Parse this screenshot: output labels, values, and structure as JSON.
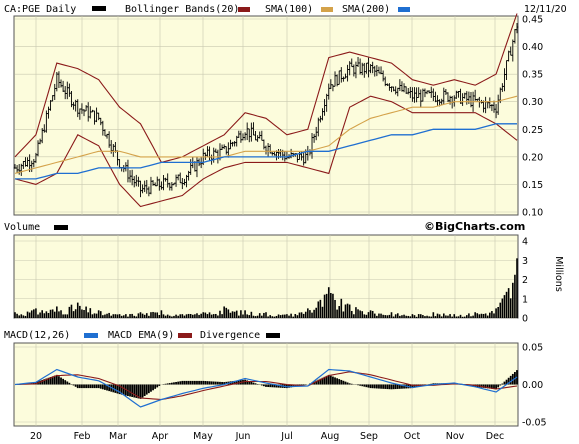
{
  "chart_data": [
    {
      "type": "candlestick",
      "panel": "price",
      "header": {
        "symbol": "CA:PGE Daily",
        "legend": [
          {
            "label": "Bollinger Bands(20)",
            "color": "#8b1a1a"
          },
          {
            "label": "SMA(100)",
            "color": "#d4a24a"
          },
          {
            "label": "SMA(200)",
            "color": "#1f6fd1"
          }
        ],
        "date": "12/11/20"
      },
      "y_ticks": [
        "0.45",
        "0.40",
        "0.35",
        "0.30",
        "0.25",
        "0.20",
        "0.15",
        "0.10"
      ],
      "ylim": [
        0.1,
        0.45
      ],
      "x_ticks": [
        "20",
        "Feb",
        "Mar",
        "Apr",
        "May",
        "Jun",
        "Jul",
        "Aug",
        "Sep",
        "Oct",
        "Nov",
        "Dec"
      ],
      "close_series": [
        [
          "20",
          0.18
        ],
        [
          "Jan mid",
          0.2
        ],
        [
          "Jan late",
          0.34
        ],
        [
          "Feb",
          0.29
        ],
        [
          "Feb mid",
          0.27
        ],
        [
          "Mar",
          0.19
        ],
        [
          "Mar mid",
          0.14
        ],
        [
          "Apr",
          0.15
        ],
        [
          "Apr mid",
          0.16
        ],
        [
          "May",
          0.2
        ],
        [
          "May mid",
          0.21
        ],
        [
          "Jun",
          0.25
        ],
        [
          "Jun mid",
          0.22
        ],
        [
          "Jul",
          0.2
        ],
        [
          "Jul mid",
          0.2
        ],
        [
          "Aug",
          0.33
        ],
        [
          "Aug mid",
          0.36
        ],
        [
          "Sep",
          0.36
        ],
        [
          "Sep mid",
          0.33
        ],
        [
          "Oct",
          0.31
        ],
        [
          "Oct mid",
          0.31
        ],
        [
          "Nov",
          0.31
        ],
        [
          "Nov mid",
          0.3
        ],
        [
          "Dec",
          0.29
        ],
        [
          "12/11/20",
          0.44
        ]
      ],
      "bollinger_upper": [
        0.2,
        0.24,
        0.37,
        0.36,
        0.34,
        0.29,
        0.26,
        0.19,
        0.2,
        0.22,
        0.24,
        0.28,
        0.27,
        0.24,
        0.25,
        0.38,
        0.39,
        0.38,
        0.37,
        0.34,
        0.33,
        0.34,
        0.33,
        0.35,
        0.46
      ],
      "bollinger_lower": [
        0.16,
        0.15,
        0.17,
        0.24,
        0.22,
        0.15,
        0.11,
        0.12,
        0.13,
        0.16,
        0.18,
        0.19,
        0.19,
        0.19,
        0.18,
        0.17,
        0.29,
        0.31,
        0.3,
        0.28,
        0.28,
        0.28,
        0.28,
        0.26,
        0.23
      ],
      "sma_100": [
        0.17,
        0.18,
        0.19,
        0.2,
        0.21,
        0.21,
        0.2,
        0.2,
        0.2,
        0.2,
        0.2,
        0.21,
        0.21,
        0.21,
        0.21,
        0.22,
        0.25,
        0.27,
        0.28,
        0.29,
        0.29,
        0.3,
        0.3,
        0.3,
        0.31
      ],
      "sma_200": [
        0.16,
        0.16,
        0.17,
        0.17,
        0.18,
        0.18,
        0.18,
        0.19,
        0.19,
        0.19,
        0.2,
        0.2,
        0.2,
        0.2,
        0.21,
        0.21,
        0.22,
        0.23,
        0.24,
        0.24,
        0.25,
        0.25,
        0.25,
        0.26,
        0.26
      ]
    },
    {
      "type": "bar",
      "panel": "volume",
      "header": {
        "label": "Volume",
        "credit": "©BigCharts.com"
      },
      "y_ticks": [
        "4",
        "3",
        "2",
        "1",
        "0"
      ],
      "ylim": [
        0,
        4
      ],
      "ylabel": "Millions",
      "values_millions": [
        0.3,
        0.5,
        0.6,
        0.8,
        0.4,
        0.2,
        0.3,
        0.4,
        0.2,
        0.3,
        0.6,
        0.4,
        0.3,
        0.2,
        0.5,
        1.6,
        0.7,
        0.4,
        0.3,
        0.2,
        0.3,
        0.2,
        0.3,
        0.5,
        3.1
      ]
    },
    {
      "type": "line",
      "panel": "macd",
      "header": {
        "legend": [
          {
            "label": "MACD(12,26)",
            "color": "#1f6fd1"
          },
          {
            "label": "MACD EMA(9)",
            "color": "#8b1a1a"
          },
          {
            "label": "Divergence",
            "color": "#000000"
          }
        ]
      },
      "y_ticks": [
        "0.05",
        "0.00",
        "-0.05"
      ],
      "ylim": [
        -0.05,
        0.05
      ],
      "macd": [
        0.0,
        0.003,
        0.02,
        0.01,
        0.005,
        -0.01,
        -0.03,
        -0.02,
        -0.012,
        -0.005,
        0.0,
        0.008,
        0.002,
        -0.003,
        -0.002,
        0.02,
        0.018,
        0.01,
        0.002,
        -0.004,
        0.0,
        0.002,
        -0.003,
        -0.01,
        0.01
      ],
      "signal": [
        0.0,
        0.001,
        0.012,
        0.013,
        0.008,
        -0.002,
        -0.018,
        -0.02,
        -0.015,
        -0.008,
        -0.002,
        0.004,
        0.004,
        0.0,
        -0.002,
        0.012,
        0.017,
        0.013,
        0.006,
        -0.001,
        -0.001,
        0.001,
        -0.001,
        -0.006,
        -0.002
      ]
    }
  ]
}
